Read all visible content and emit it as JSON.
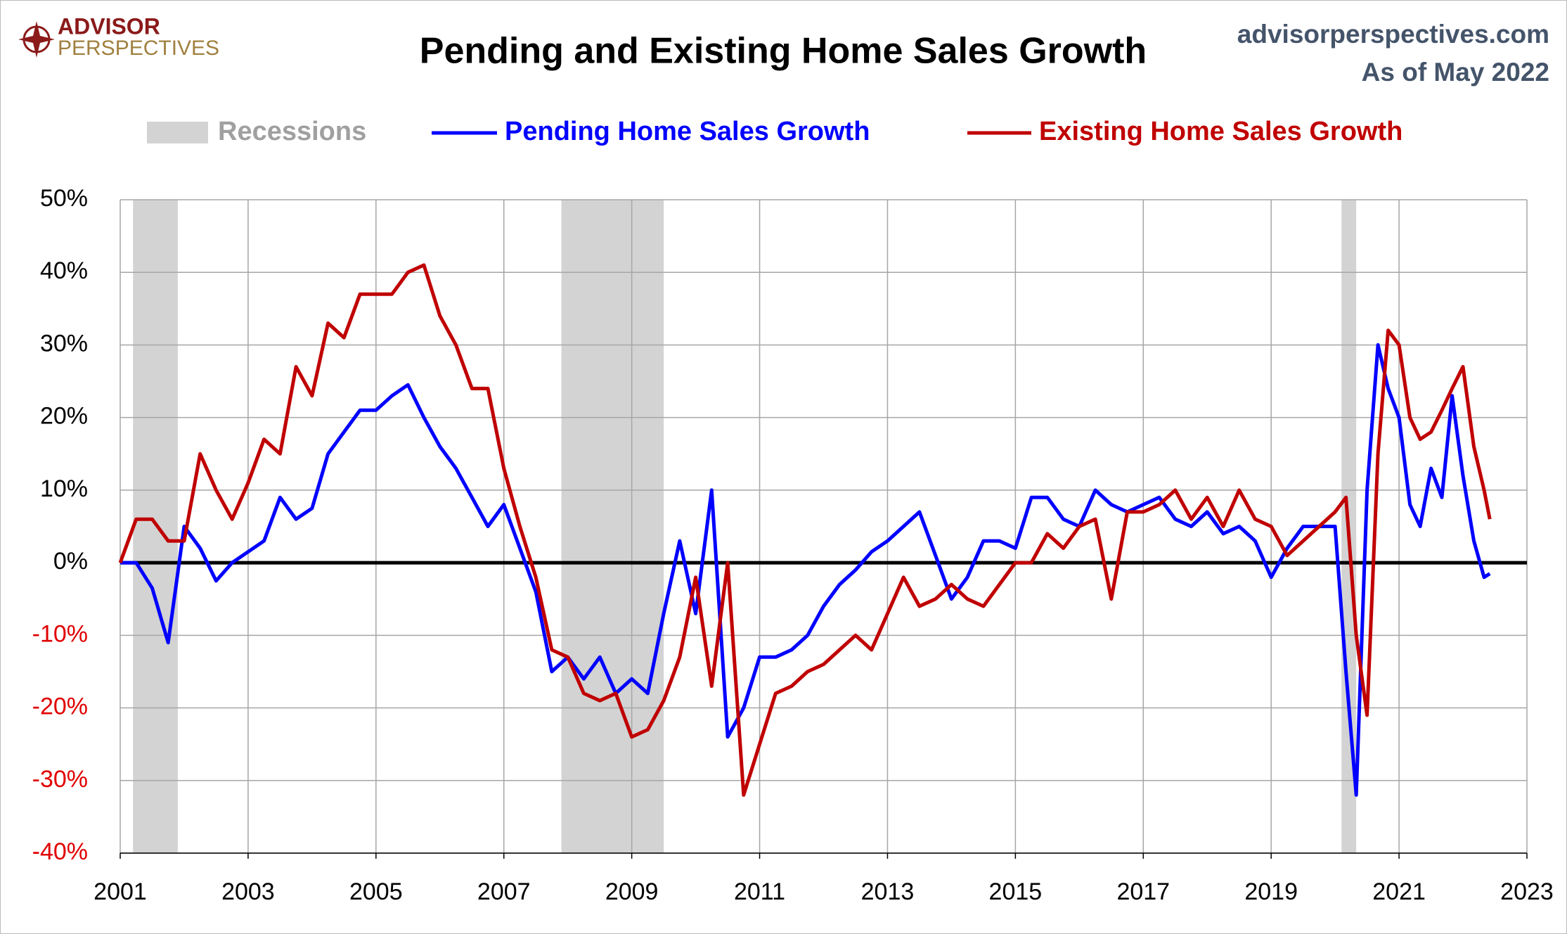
{
  "chart_data": {
    "type": "line",
    "title": "Pending and Existing Home Sales Growth",
    "logo": [
      "ADVISOR",
      "PERSPECTIVES"
    ],
    "source": "advisorperspectives.com",
    "subtitle": "As of May 2022",
    "recession_label": "Recessions",
    "recession_color": "#d3d3d3",
    "recessions": [
      [
        2001.2,
        2001.9
      ],
      [
        2007.9,
        2009.5
      ],
      [
        2020.1,
        2020.33
      ]
    ],
    "grid": true,
    "negative_tick_color": "#e00000",
    "xlim": [
      2001,
      2023
    ],
    "xticks": [
      2001,
      2003,
      2005,
      2007,
      2009,
      2011,
      2013,
      2015,
      2017,
      2019,
      2021,
      2023
    ],
    "ylim": [
      -40,
      50
    ],
    "yticks": [
      {
        "value": -40,
        "label": "-40%"
      },
      {
        "value": -30,
        "label": "-30%"
      },
      {
        "value": -20,
        "label": "-20%"
      },
      {
        "value": -10,
        "label": "-10%"
      },
      {
        "value": 0,
        "label": "0%"
      },
      {
        "value": 10,
        "label": "10%"
      },
      {
        "value": 20,
        "label": "20%"
      },
      {
        "value": 30,
        "label": "30%"
      },
      {
        "value": 40,
        "label": "40%"
      },
      {
        "value": 50,
        "label": "50%"
      }
    ],
    "x": [
      2001,
      2001.25,
      2001.5,
      2001.75,
      2002,
      2002.25,
      2002.5,
      2002.75,
      2003,
      2003.25,
      2003.5,
      2003.75,
      2004,
      2004.25,
      2004.5,
      2004.75,
      2005,
      2005.25,
      2005.5,
      2005.75,
      2006,
      2006.25,
      2006.5,
      2006.75,
      2007,
      2007.25,
      2007.5,
      2007.75,
      2008,
      2008.25,
      2008.5,
      2008.75,
      2009,
      2009.25,
      2009.5,
      2009.75,
      2010,
      2010.25,
      2010.5,
      2010.75,
      2011,
      2011.25,
      2011.5,
      2011.75,
      2012,
      2012.25,
      2012.5,
      2012.75,
      2013,
      2013.25,
      2013.5,
      2013.75,
      2014,
      2014.25,
      2014.5,
      2014.75,
      2015,
      2015.25,
      2015.5,
      2015.75,
      2016,
      2016.25,
      2016.5,
      2016.75,
      2017,
      2017.25,
      2017.5,
      2017.75,
      2018,
      2018.25,
      2018.5,
      2018.75,
      2019,
      2019.25,
      2019.5,
      2019.75,
      2020,
      2020.17,
      2020.33,
      2020.5,
      2020.67,
      2020.83,
      2021,
      2021.17,
      2021.33,
      2021.5,
      2021.67,
      2021.83,
      2022,
      2022.17,
      2022.33,
      2022.42
    ],
    "series": [
      {
        "name": "Pending Home Sales Growth",
        "color": "#0000ff",
        "values": [
          0,
          0,
          -3.5,
          -11,
          5,
          2,
          -2.5,
          0,
          1.5,
          3,
          9,
          6,
          7.5,
          15,
          18,
          21,
          21,
          23,
          24.5,
          20,
          16,
          13,
          9,
          5,
          8,
          2,
          -4,
          -15,
          -13,
          -16,
          -13,
          -18,
          -16,
          -18,
          -7,
          3,
          -7,
          10,
          -24,
          -20,
          -13,
          -13,
          -12,
          -10,
          -6,
          -3,
          -1,
          1.5,
          3,
          5,
          7,
          1,
          -5,
          -2,
          3,
          3,
          2,
          9,
          9,
          6,
          5,
          10,
          8,
          7,
          8,
          9,
          6,
          5,
          7,
          4,
          5,
          3,
          -2,
          2,
          5,
          5,
          5,
          -15,
          -32,
          10,
          30,
          24,
          20,
          8,
          5,
          13,
          9,
          23,
          12,
          3,
          -2,
          -1.5
        ]
      },
      {
        "name": "Existing Home Sales Growth",
        "color": "#c00000",
        "values": [
          0,
          6,
          6,
          3,
          3,
          15,
          10,
          6,
          11,
          17,
          15,
          27,
          23,
          33,
          31,
          37,
          37,
          37,
          40,
          41,
          34,
          30,
          24,
          24,
          13,
          5,
          -2,
          -12,
          -13,
          -18,
          -19,
          -18,
          -24,
          -23,
          -19,
          -13,
          -2,
          -17,
          0,
          -32,
          -25,
          -18,
          -17,
          -15,
          -14,
          -12,
          -10,
          -12,
          -7,
          -2,
          -6,
          -5,
          -3,
          -5,
          -6,
          -3,
          0,
          0,
          4,
          2,
          5,
          6,
          -5,
          7,
          7,
          8,
          10,
          6,
          9,
          5,
          10,
          6,
          5,
          1,
          3,
          5,
          7,
          9,
          -10,
          -21,
          15,
          32,
          30,
          20,
          17,
          18,
          21,
          24,
          27,
          16,
          10,
          6
        ]
      }
    ]
  }
}
